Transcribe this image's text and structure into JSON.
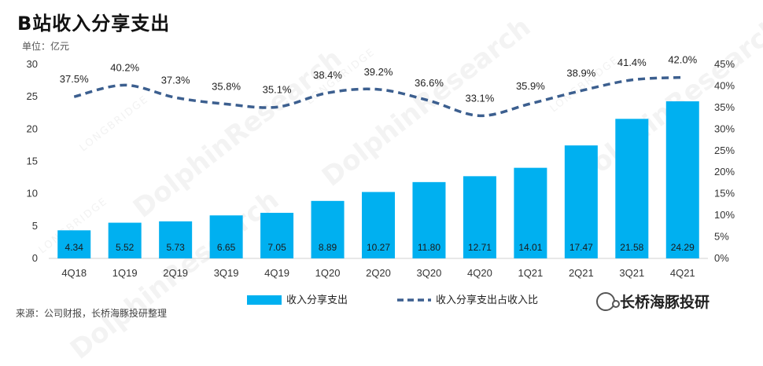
{
  "header": {
    "title": "B站收入分享支出",
    "unit": "单位：亿元"
  },
  "footer": {
    "source": "来源：公司财报，长桥海豚投研整理",
    "brand": "长桥海豚投研"
  },
  "watermark": {
    "main": "DolphinResearch",
    "sub": "LONGBRIDGE"
  },
  "colors": {
    "bar": "#00b0f0",
    "line": "#3c5f8f",
    "axis": "#d0d0d0"
  },
  "chart_data": {
    "type": "bar+line",
    "categories": [
      "4Q18",
      "1Q19",
      "2Q19",
      "3Q19",
      "4Q19",
      "1Q20",
      "2Q20",
      "3Q20",
      "4Q20",
      "1Q21",
      "2Q21",
      "3Q21",
      "4Q21"
    ],
    "series": [
      {
        "name": "收入分享支出",
        "type": "bar",
        "axis": "left",
        "values": [
          4.34,
          5.52,
          5.73,
          6.65,
          7.05,
          8.89,
          10.27,
          11.8,
          12.71,
          14.01,
          17.47,
          21.58,
          24.29
        ],
        "labels": [
          "4.34",
          "5.52",
          "5.73",
          "6.65",
          "7.05",
          "8.89",
          "10.27",
          "11.80",
          "12.71",
          "14.01",
          "17.47",
          "21.58",
          "24.29"
        ]
      },
      {
        "name": "收入分享支出占收入比",
        "type": "line",
        "style": "dashed",
        "axis": "right",
        "values": [
          37.5,
          40.2,
          37.3,
          35.8,
          35.1,
          38.4,
          39.2,
          36.6,
          33.1,
          35.9,
          38.9,
          41.4,
          42.0
        ],
        "labels": [
          "37.5%",
          "40.2%",
          "37.3%",
          "35.8%",
          "35.1%",
          "38.4%",
          "39.2%",
          "36.6%",
          "33.1%",
          "35.9%",
          "38.9%",
          "41.4%",
          "42.0%"
        ]
      }
    ],
    "y_left": {
      "min": 0,
      "max": 30,
      "ticks": [
        "0",
        "5",
        "10",
        "15",
        "20",
        "25",
        "30"
      ]
    },
    "y_right": {
      "min": 0,
      "max": 45,
      "ticks": [
        "0%",
        "5%",
        "10%",
        "15%",
        "20%",
        "25%",
        "30%",
        "35%",
        "40%",
        "45%"
      ]
    },
    "legend": {
      "position": "bottom"
    },
    "grid": false
  }
}
